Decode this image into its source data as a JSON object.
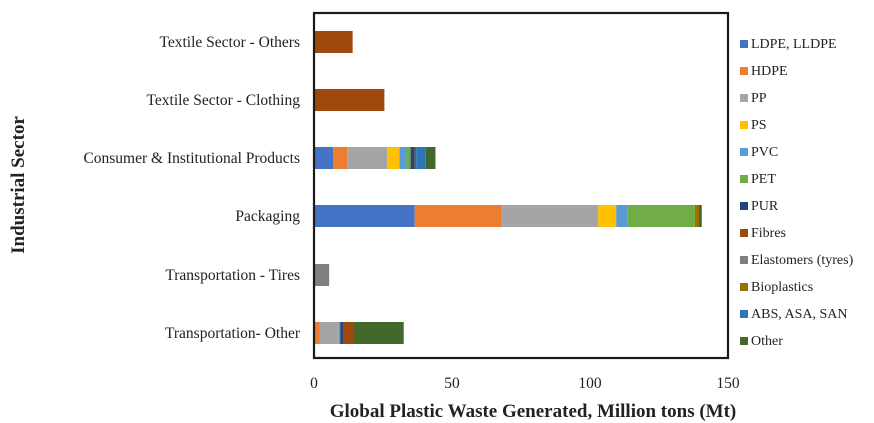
{
  "chart_data": {
    "type": "bar",
    "orientation": "horizontal",
    "stacked": true,
    "categories": [
      "Textile Sector - Others",
      "Textile Sector - Clothing",
      "Consumer & Institutional Products",
      "Packaging",
      "Transportation - Tires",
      "Transportation- Other"
    ],
    "series": [
      {
        "name": "LDPE, LLDPE",
        "color": "#4472C4",
        "values": [
          0,
          0,
          7,
          36.5,
          0,
          0
        ]
      },
      {
        "name": "HDPE",
        "color": "#ED7D31",
        "values": [
          0,
          0,
          5,
          31.5,
          0,
          2
        ]
      },
      {
        "name": "PP",
        "color": "#A5A5A5",
        "values": [
          0,
          0,
          14.5,
          35,
          0,
          7
        ]
      },
      {
        "name": "PS",
        "color": "#FFC000",
        "values": [
          0,
          0,
          4.5,
          6.5,
          0,
          0
        ]
      },
      {
        "name": "PVC",
        "color": "#5B9BD5",
        "values": [
          0,
          0,
          2.5,
          4,
          0,
          0.5
        ]
      },
      {
        "name": "PET",
        "color": "#70AD47",
        "values": [
          0,
          0,
          1.5,
          24.5,
          0,
          0
        ]
      },
      {
        "name": "PUR",
        "color": "#264478",
        "values": [
          0,
          0,
          1.5,
          0,
          0,
          1
        ]
      },
      {
        "name": "Fibres",
        "color": "#9E480E",
        "values": [
          14,
          25.5,
          0.5,
          0,
          0,
          4
        ]
      },
      {
        "name": "Elastomers (tyres)",
        "color": "#7F7F7F",
        "values": [
          0,
          0,
          0,
          0,
          5.5,
          0
        ]
      },
      {
        "name": "Bioplastics",
        "color": "#997300",
        "values": [
          0,
          0,
          0,
          1.5,
          0,
          0
        ]
      },
      {
        "name": "ABS, ASA, SAN",
        "color": "#2E75B6",
        "values": [
          0,
          0,
          3.5,
          0,
          0,
          0
        ]
      },
      {
        "name": "Other",
        "color": "#43682B",
        "values": [
          0,
          0,
          3.5,
          1,
          0,
          18
        ]
      }
    ],
    "xlim": [
      0,
      150
    ],
    "xticks": [
      "0",
      "50",
      "100",
      "150"
    ],
    "xlabel": "Global Plastic Waste Generated, Million tons (Mt)",
    "ylabel": "Industrial Sector",
    "grid": false,
    "legend_position": "right"
  }
}
